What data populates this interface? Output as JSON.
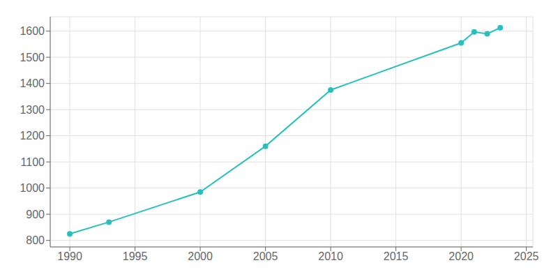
{
  "chart_data": {
    "type": "line",
    "x": [
      1990,
      1993,
      2000,
      2005,
      2010,
      2020,
      2021,
      2022,
      2023
    ],
    "values": [
      825,
      870,
      985,
      1160,
      1375,
      1555,
      1597,
      1590,
      1613
    ],
    "color": "#2ABFBF",
    "marker": "circle",
    "xlim": [
      1988.5,
      2025.5
    ],
    "ylim": [
      775,
      1655
    ],
    "xticks": [
      1990,
      1995,
      2000,
      2005,
      2010,
      2015,
      2020,
      2025
    ],
    "yticks": [
      800,
      900,
      1000,
      1100,
      1200,
      1300,
      1400,
      1500,
      1600
    ],
    "grid": true
  }
}
